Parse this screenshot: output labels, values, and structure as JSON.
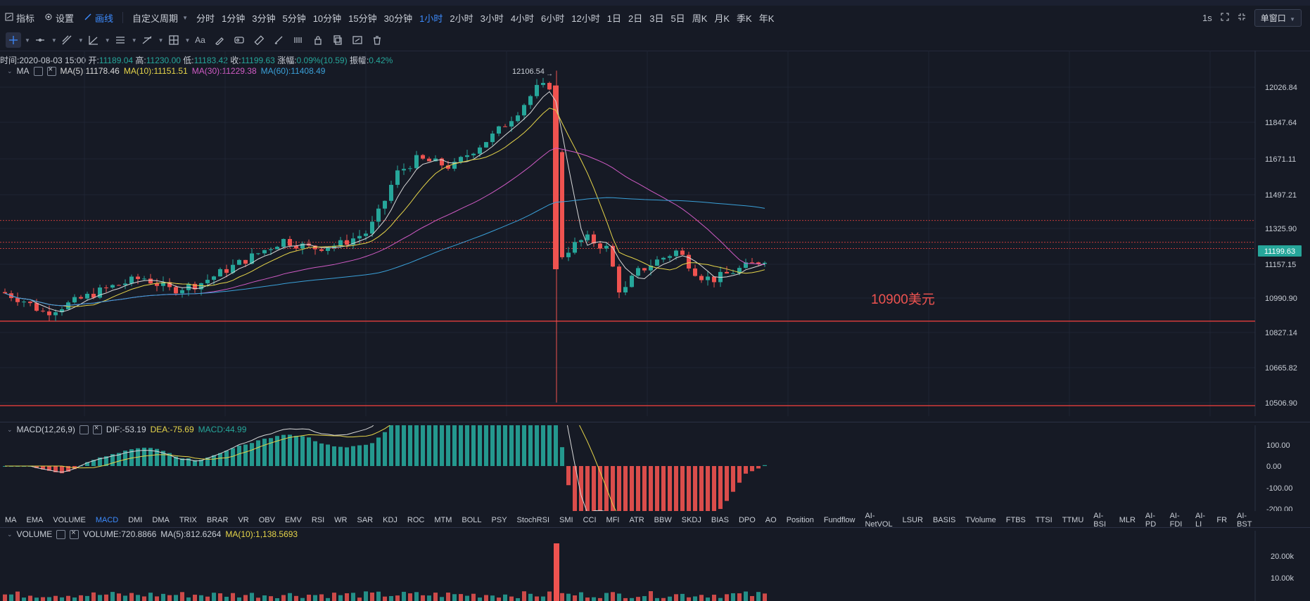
{
  "toolbar": {
    "indicator_label": "指标",
    "settings_label": "设置",
    "draw_label": "画线",
    "custom_period_label": "自定义周期",
    "periods": [
      "分时",
      "1分钟",
      "3分钟",
      "5分钟",
      "10分钟",
      "15分钟",
      "30分钟",
      "1小时",
      "2小时",
      "3小时",
      "4小时",
      "6小时",
      "12小时",
      "1日",
      "2日",
      "3日",
      "5日",
      "周K",
      "月K",
      "季K",
      "年K"
    ],
    "active_period": "1小时",
    "interval_label": "1s",
    "window_label": "单窗口"
  },
  "info": {
    "time": "时间:2020-08-03 15:00",
    "open_label": "开:",
    "open": "11189.04",
    "high_label": "高:",
    "high": "11230.00",
    "low_label": "低:",
    "low": "11183.42",
    "close_label": "收:",
    "close": "11199.63",
    "change_label": "涨幅:",
    "change": "0.09%(10.59)",
    "amp_label": "振幅:",
    "amp": "0.42%"
  },
  "ma_legend": {
    "name": "MA",
    "ma5": "MA(5):11178.46",
    "ma10": "MA(10):11151.51",
    "ma30": "MA(30):11229.38",
    "ma60": "MA(60):11408.49"
  },
  "price_axis": [
    "12026.84",
    "11847.64",
    "11671.11",
    "11497.21",
    "11325.90",
    "11157.15",
    "10990.90",
    "10827.14",
    "10665.82",
    "10506.90"
  ],
  "current_price": "11199.63",
  "annotations": {
    "support": "10900美元",
    "peak": "12106.54",
    "trough": "10508"
  },
  "macd_legend": {
    "name": "MACD(12,26,9)",
    "dif": "DIF:-53.19",
    "dea": "DEA:-75.69",
    "macd": "MACD:44.99"
  },
  "macd_axis": [
    "100.00",
    "0.00",
    "-100.00",
    "-200.00"
  ],
  "indicator_tabs": [
    "MA",
    "EMA",
    "VOLUME",
    "MACD",
    "DMI",
    "DMA",
    "TRIX",
    "BRAR",
    "VR",
    "OBV",
    "EMV",
    "RSI",
    "WR",
    "SAR",
    "KDJ",
    "ROC",
    "MTM",
    "BOLL",
    "PSY",
    "StochRSI",
    "SMI",
    "CCI",
    "MFI",
    "ATR",
    "BBW",
    "SKDJ",
    "BIAS",
    "DPO",
    "AO",
    "Position",
    "Fundflow",
    "AI-NetVOL",
    "LSUR",
    "BASIS",
    "TVolume",
    "FTBS",
    "TTSI",
    "TTMU",
    "AI-BSI",
    "MLR",
    "AI-PD",
    "AI-FDI",
    "AI-LI",
    "FR",
    "AI-BST"
  ],
  "active_indicator_tab": "MACD",
  "volume_legend": {
    "name": "VOLUME",
    "vol": "VOLUME:720.8866",
    "ma5": "MA(5):812.6264",
    "ma10": "MA(10):1,138.5693"
  },
  "volume_axis": [
    "20.00k",
    "10.00k"
  ],
  "colors": {
    "up": "#26a69a",
    "down": "#ef5350",
    "ma5": "#d9d9d9",
    "ma10": "#e6d54a",
    "ma30": "#d05bc5",
    "ma60": "#3aa0d8",
    "accent": "#3d8bfd"
  }
}
